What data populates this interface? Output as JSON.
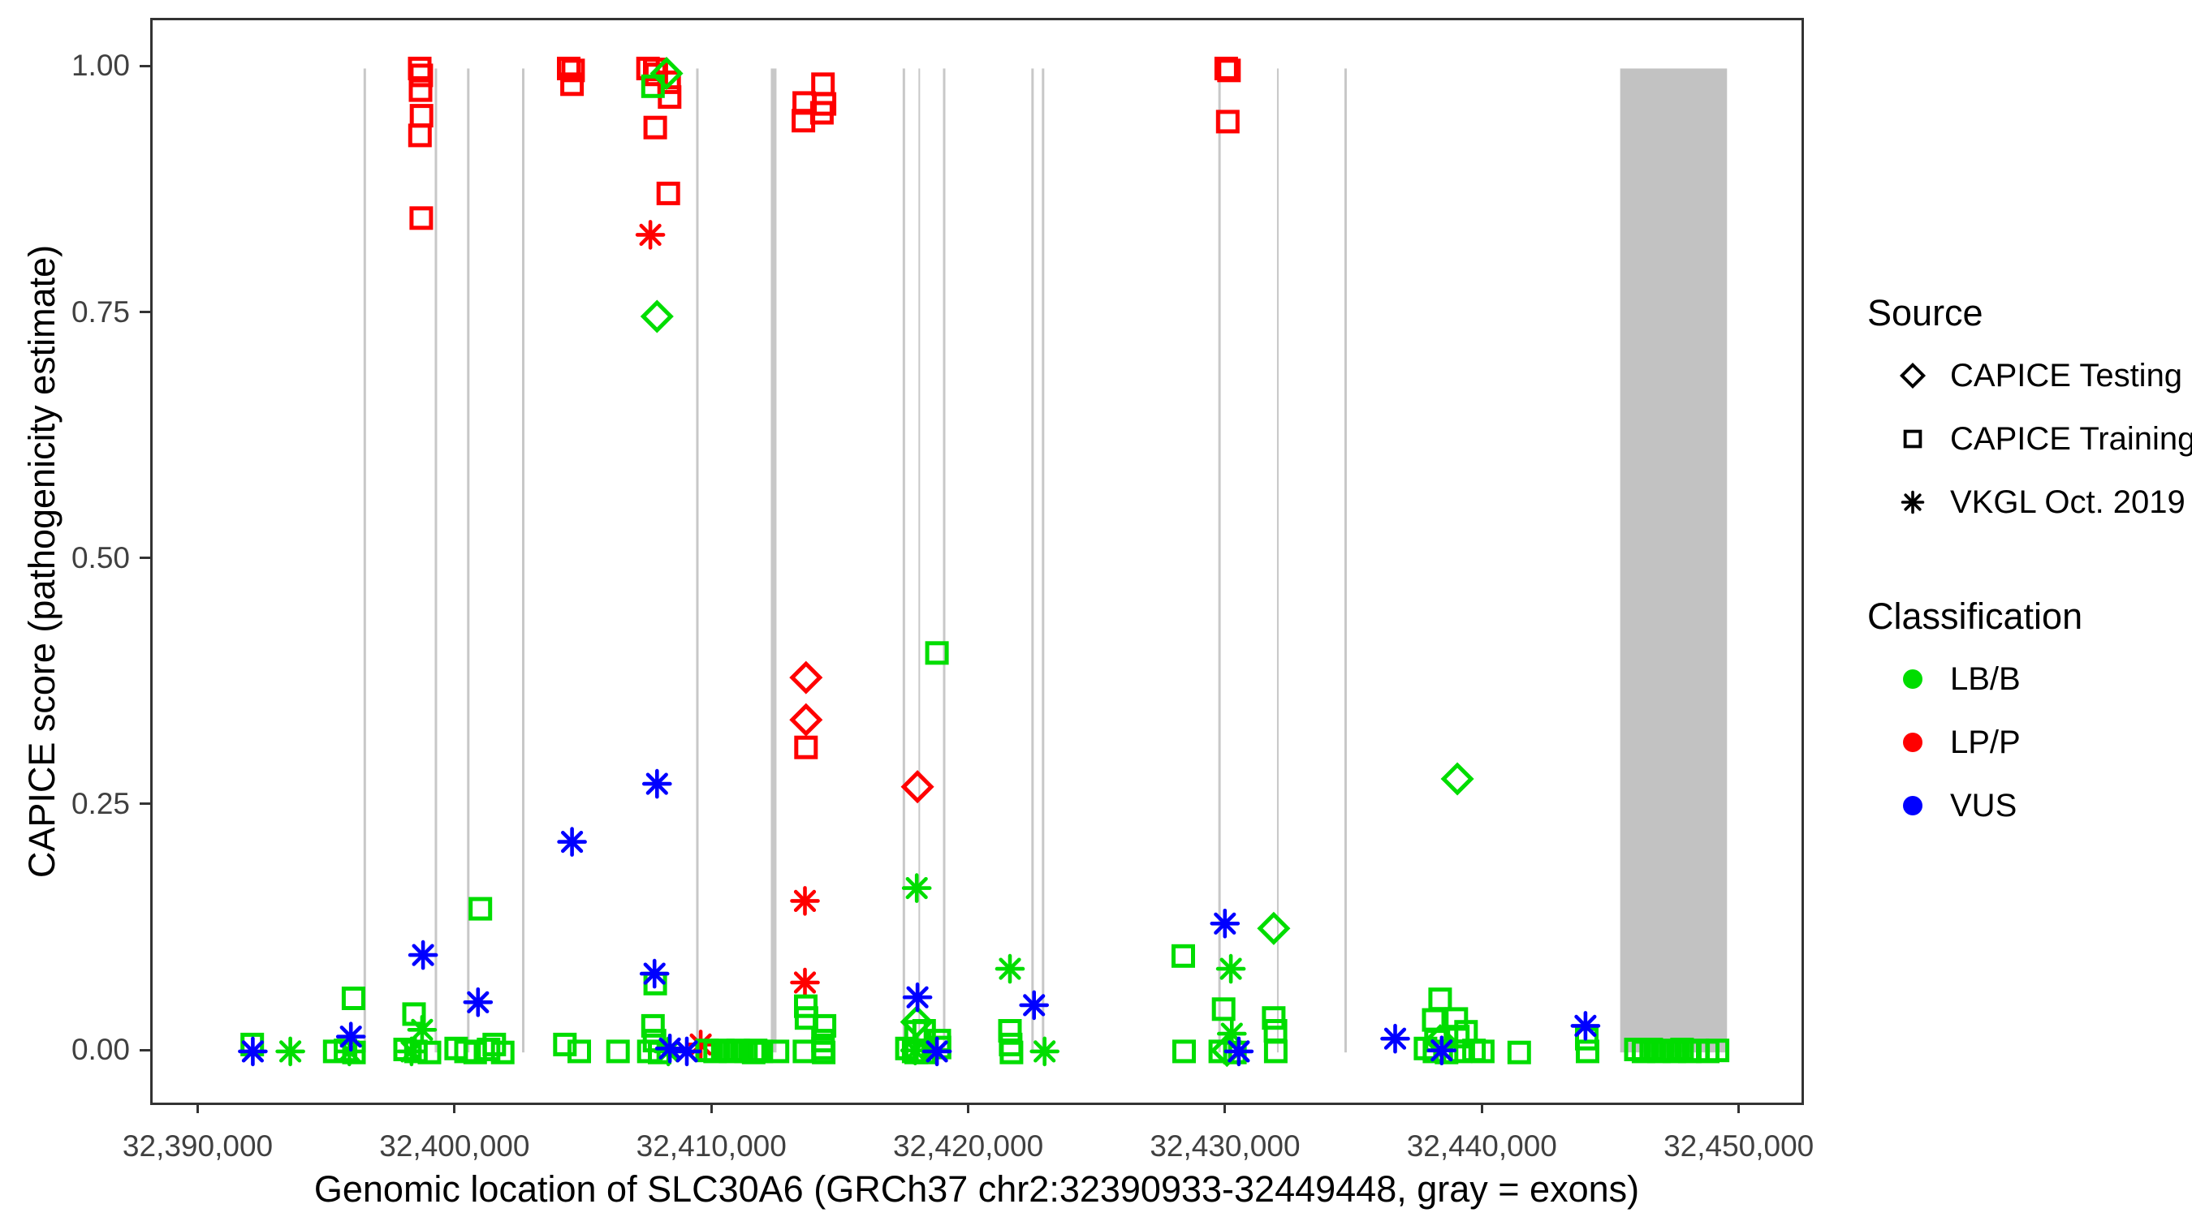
{
  "axes": {
    "x_title": "Genomic location of SLC30A6 (GRCh37 chr2:32390933-32449448, gray = exons)",
    "y_title": "CAPICE score (pathogenicity estimate)"
  },
  "legend": {
    "source_title": "Source",
    "source_items": [
      {
        "marker": "diamond",
        "label": "CAPICE Testing"
      },
      {
        "marker": "square",
        "label": "CAPICE Training"
      },
      {
        "marker": "asterisk",
        "label": "VKGL Oct. 2019"
      }
    ],
    "classification_title": "Classification",
    "classification_items": [
      {
        "cls": "B",
        "label": "LB/B"
      },
      {
        "cls": "P",
        "label": "LP/P"
      },
      {
        "cls": "U",
        "label": "VUS"
      }
    ]
  },
  "chart_data": {
    "type": "scatter",
    "xlabel": "Genomic location of SLC30A6 (GRCh37 chr2:32390933-32449448, gray = exons)",
    "ylabel": "CAPICE score (pathogenicity estimate)",
    "legend_position": "right",
    "grid": false,
    "x_domain": [
      32388150,
      32452350
    ],
    "y_domain": [
      -0.051,
      1.049
    ],
    "x_ticks": [
      {
        "bp": 32390000,
        "label": "32,390,000"
      },
      {
        "bp": 32400000,
        "label": "32,400,000"
      },
      {
        "bp": 32410000,
        "label": "32,410,000"
      },
      {
        "bp": 32420000,
        "label": "32,420,000"
      },
      {
        "bp": 32430000,
        "label": "32,430,000"
      },
      {
        "bp": 32440000,
        "label": "32,440,000"
      },
      {
        "bp": 32450000,
        "label": "32,450,000"
      }
    ],
    "y_ticks": [
      {
        "v": 0.0,
        "label": "0.00"
      },
      {
        "v": 0.25,
        "label": "0.25"
      },
      {
        "v": 0.5,
        "label": "0.50"
      },
      {
        "v": 0.75,
        "label": "0.75"
      },
      {
        "v": 1.0,
        "label": "1.00"
      }
    ],
    "colors": {
      "B": "#00dd00",
      "P": "#ff0000",
      "U": "#0000ff"
    },
    "class_names": {
      "B": "LB/B",
      "P": "LP/P",
      "U": "VUS"
    },
    "source_names": {
      "T": "CAPICE Testing",
      "R": "CAPICE Training",
      "V": "VKGL Oct. 2019"
    },
    "exon_color": "#c8c8c8",
    "band_color": "#c2c2c2",
    "exon_span": [
      0.0,
      1.0
    ],
    "exons": [
      {
        "bp": 32396410,
        "w": 3
      },
      {
        "bp": 32399180,
        "w": 3
      },
      {
        "bp": 32400440,
        "w": 3
      },
      {
        "bp": 32402580,
        "w": 3
      },
      {
        "bp": 32409360,
        "w": 3
      },
      {
        "bp": 32412330,
        "w": 7
      },
      {
        "bp": 32417400,
        "w": 3
      },
      {
        "bp": 32418000,
        "w": 2
      },
      {
        "bp": 32418970,
        "w": 3
      },
      {
        "bp": 32422410,
        "w": 3
      },
      {
        "bp": 32422820,
        "w": 3
      },
      {
        "bp": 32429690,
        "w": 3
      },
      {
        "bp": 32431960,
        "w": 2
      },
      {
        "bp": 32434600,
        "w": 3
      }
    ],
    "exon_band": {
      "from": 32445290,
      "to": 32449450
    },
    "points": [
      [
        32398550,
        1.0,
        "R",
        "P"
      ],
      [
        32398610,
        0.993,
        "R",
        "P"
      ],
      [
        32398580,
        0.978,
        "R",
        "P"
      ],
      [
        32398620,
        0.952,
        "R",
        "P"
      ],
      [
        32398560,
        0.932,
        "R",
        "P"
      ],
      [
        32398610,
        0.848,
        "R",
        "P"
      ],
      [
        32404350,
        1.0,
        "R",
        "P"
      ],
      [
        32404520,
        0.998,
        "R",
        "P"
      ],
      [
        32404480,
        0.984,
        "R",
        "P"
      ],
      [
        32407440,
        1.0,
        "R",
        "P"
      ],
      [
        32407700,
        0.999,
        "R",
        "P"
      ],
      [
        32407760,
        0.994,
        "R",
        "P"
      ],
      [
        32408260,
        0.986,
        "R",
        "P"
      ],
      [
        32408280,
        0.971,
        "R",
        "P"
      ],
      [
        32407720,
        0.94,
        "R",
        "P"
      ],
      [
        32408230,
        0.873,
        "R",
        "P"
      ],
      [
        32413520,
        0.965,
        "R",
        "P"
      ],
      [
        32413490,
        0.947,
        "R",
        "P"
      ],
      [
        32414250,
        0.984,
        "R",
        "P"
      ],
      [
        32414310,
        0.964,
        "R",
        "P"
      ],
      [
        32414210,
        0.955,
        "R",
        "P"
      ],
      [
        32413590,
        0.31,
        "R",
        "P"
      ],
      [
        32429950,
        1.0,
        "R",
        "P"
      ],
      [
        32430060,
        0.998,
        "R",
        "P"
      ],
      [
        32430010,
        0.946,
        "R",
        "P"
      ],
      [
        32413590,
        0.381,
        "T",
        "P"
      ],
      [
        32413590,
        0.338,
        "T",
        "P"
      ],
      [
        32417930,
        0.27,
        "T",
        "P"
      ],
      [
        32407530,
        0.831,
        "V",
        "P"
      ],
      [
        32413550,
        0.154,
        "V",
        "P"
      ],
      [
        32413550,
        0.071,
        "V",
        "P"
      ],
      [
        32409490,
        0.008,
        "V",
        "P"
      ],
      [
        32408160,
        0.995,
        "T",
        "B"
      ],
      [
        32407790,
        0.748,
        "T",
        "B"
      ],
      [
        32417900,
        0.031,
        "T",
        "B"
      ],
      [
        32431800,
        0.126,
        "T",
        "B"
      ],
      [
        32438950,
        0.278,
        "T",
        "B"
      ],
      [
        32438280,
        0.012,
        "T",
        "B"
      ],
      [
        32429980,
        0.002,
        "T",
        "B"
      ],
      [
        32392030,
        0.008,
        "R",
        "B"
      ],
      [
        32395970,
        0.055,
        "R",
        "B"
      ],
      [
        32395240,
        0.001,
        "R",
        "B"
      ],
      [
        32395660,
        0.002,
        "R",
        "B"
      ],
      [
        32395990,
        0.0,
        "R",
        "B"
      ],
      [
        32398330,
        0.039,
        "R",
        "B"
      ],
      [
        32397980,
        0.003,
        "R",
        "B"
      ],
      [
        32398400,
        0.001,
        "R",
        "B"
      ],
      [
        32398930,
        0.0,
        "R",
        "B"
      ],
      [
        32400910,
        0.146,
        "R",
        "B"
      ],
      [
        32399970,
        0.004,
        "R",
        "B"
      ],
      [
        32400350,
        0.001,
        "R",
        "B"
      ],
      [
        32400710,
        0.0,
        "R",
        "B"
      ],
      [
        32401230,
        0.003,
        "R",
        "B"
      ],
      [
        32401450,
        0.008,
        "R",
        "B"
      ],
      [
        32401780,
        0.0,
        "R",
        "B"
      ],
      [
        32404200,
        0.008,
        "R",
        "B"
      ],
      [
        32404760,
        0.001,
        "R",
        "B"
      ],
      [
        32406270,
        0.001,
        "R",
        "B"
      ],
      [
        32407630,
        0.982,
        "R",
        "B"
      ],
      [
        32407720,
        0.07,
        "R",
        "B"
      ],
      [
        32407630,
        0.027,
        "R",
        "B"
      ],
      [
        32407690,
        0.012,
        "R",
        "B"
      ],
      [
        32407470,
        0.001,
        "R",
        "B"
      ],
      [
        32407890,
        0.0,
        "R",
        "B"
      ],
      [
        32409740,
        0.002,
        "R",
        "B"
      ],
      [
        32410050,
        0.001,
        "R",
        "B"
      ],
      [
        32410350,
        0.002,
        "R",
        "B"
      ],
      [
        32410650,
        0.001,
        "R",
        "B"
      ],
      [
        32410950,
        0.002,
        "R",
        "B"
      ],
      [
        32411250,
        0.001,
        "R",
        "B"
      ],
      [
        32411550,
        0.0,
        "R",
        "B"
      ],
      [
        32411850,
        0.001,
        "R",
        "B"
      ],
      [
        32411630,
        0.002,
        "R",
        "B"
      ],
      [
        32412480,
        0.001,
        "R",
        "B"
      ],
      [
        32413580,
        0.047,
        "R",
        "B"
      ],
      [
        32413610,
        0.035,
        "R",
        "B"
      ],
      [
        32414310,
        0.027,
        "R",
        "B"
      ],
      [
        32414250,
        0.012,
        "R",
        "B"
      ],
      [
        32414250,
        0.004,
        "R",
        "B"
      ],
      [
        32414280,
        0.0,
        "R",
        "B"
      ],
      [
        32413530,
        0.001,
        "R",
        "B"
      ],
      [
        32418690,
        0.406,
        "R",
        "B"
      ],
      [
        32417870,
        0.021,
        "R",
        "B"
      ],
      [
        32418190,
        0.022,
        "R",
        "B"
      ],
      [
        32418780,
        0.012,
        "R",
        "B"
      ],
      [
        32418790,
        0.005,
        "R",
        "B"
      ],
      [
        32417520,
        0.004,
        "R",
        "B"
      ],
      [
        32417780,
        0.001,
        "R",
        "B"
      ],
      [
        32418200,
        0.0,
        "R",
        "B"
      ],
      [
        32417880,
        0.0,
        "R",
        "B"
      ],
      [
        32421530,
        0.022,
        "R",
        "B"
      ],
      [
        32421560,
        0.008,
        "R",
        "B"
      ],
      [
        32421590,
        0.0,
        "R",
        "B"
      ],
      [
        32428280,
        0.098,
        "R",
        "B"
      ],
      [
        32428310,
        0.001,
        "R",
        "B"
      ],
      [
        32429850,
        0.044,
        "R",
        "B"
      ],
      [
        32429720,
        0.001,
        "R",
        "B"
      ],
      [
        32430290,
        0.0,
        "R",
        "B"
      ],
      [
        32431800,
        0.035,
        "R",
        "B"
      ],
      [
        32431870,
        0.022,
        "R",
        "B"
      ],
      [
        32431880,
        0.001,
        "R",
        "B"
      ],
      [
        32438280,
        0.054,
        "R",
        "B"
      ],
      [
        32438030,
        0.033,
        "R",
        "B"
      ],
      [
        32438910,
        0.034,
        "R",
        "B"
      ],
      [
        32438120,
        0.012,
        "R",
        "B"
      ],
      [
        32438970,
        0.016,
        "R",
        "B"
      ],
      [
        32439290,
        0.021,
        "R",
        "B"
      ],
      [
        32437710,
        0.004,
        "R",
        "B"
      ],
      [
        32438060,
        0.001,
        "R",
        "B"
      ],
      [
        32438530,
        0.0,
        "R",
        "B"
      ],
      [
        32439080,
        0.001,
        "R",
        "B"
      ],
      [
        32439600,
        0.002,
        "R",
        "B"
      ],
      [
        32439940,
        0.001,
        "R",
        "B"
      ],
      [
        32441360,
        0.0,
        "R",
        "B"
      ],
      [
        32443990,
        0.014,
        "R",
        "B"
      ],
      [
        32444020,
        0.001,
        "R",
        "B"
      ],
      [
        32445900,
        0.003,
        "R",
        "B"
      ],
      [
        32446200,
        0.001,
        "R",
        "B"
      ],
      [
        32446500,
        0.003,
        "R",
        "B"
      ],
      [
        32446800,
        0.001,
        "R",
        "B"
      ],
      [
        32447100,
        0.002,
        "R",
        "B"
      ],
      [
        32447400,
        0.001,
        "R",
        "B"
      ],
      [
        32447700,
        0.003,
        "R",
        "B"
      ],
      [
        32448000,
        0.001,
        "R",
        "B"
      ],
      [
        32448300,
        0.002,
        "R",
        "B"
      ],
      [
        32448700,
        0.001,
        "R",
        "B"
      ],
      [
        32449080,
        0.002,
        "R",
        "B"
      ],
      [
        32393510,
        0.001,
        "V",
        "B"
      ],
      [
        32395810,
        0.001,
        "V",
        "B"
      ],
      [
        32398640,
        0.023,
        "V",
        "B"
      ],
      [
        32398230,
        0.001,
        "V",
        "B"
      ],
      [
        32408230,
        0.001,
        "V",
        "B"
      ],
      [
        32417900,
        0.167,
        "V",
        "B"
      ],
      [
        32417840,
        0.002,
        "V",
        "B"
      ],
      [
        32421530,
        0.085,
        "V",
        "B"
      ],
      [
        32422880,
        0.001,
        "V",
        "B"
      ],
      [
        32430130,
        0.085,
        "V",
        "B"
      ],
      [
        32430170,
        0.019,
        "V",
        "B"
      ],
      [
        32392050,
        0.001,
        "V",
        "U"
      ],
      [
        32395870,
        0.016,
        "V",
        "U"
      ],
      [
        32398680,
        0.099,
        "V",
        "U"
      ],
      [
        32400820,
        0.051,
        "V",
        "U"
      ],
      [
        32404480,
        0.214,
        "V",
        "U"
      ],
      [
        32407790,
        0.273,
        "V",
        "U"
      ],
      [
        32407690,
        0.08,
        "V",
        "U"
      ],
      [
        32408290,
        0.004,
        "V",
        "U"
      ],
      [
        32408950,
        0.001,
        "V",
        "U"
      ],
      [
        32417930,
        0.056,
        "V",
        "U"
      ],
      [
        32418690,
        0.001,
        "V",
        "U"
      ],
      [
        32422470,
        0.048,
        "V",
        "U"
      ],
      [
        32429900,
        0.131,
        "V",
        "U"
      ],
      [
        32430440,
        0.001,
        "V",
        "U"
      ],
      [
        32436530,
        0.014,
        "V",
        "U"
      ],
      [
        32438340,
        0.002,
        "V",
        "U"
      ],
      [
        32443940,
        0.027,
        "V",
        "U"
      ]
    ]
  }
}
